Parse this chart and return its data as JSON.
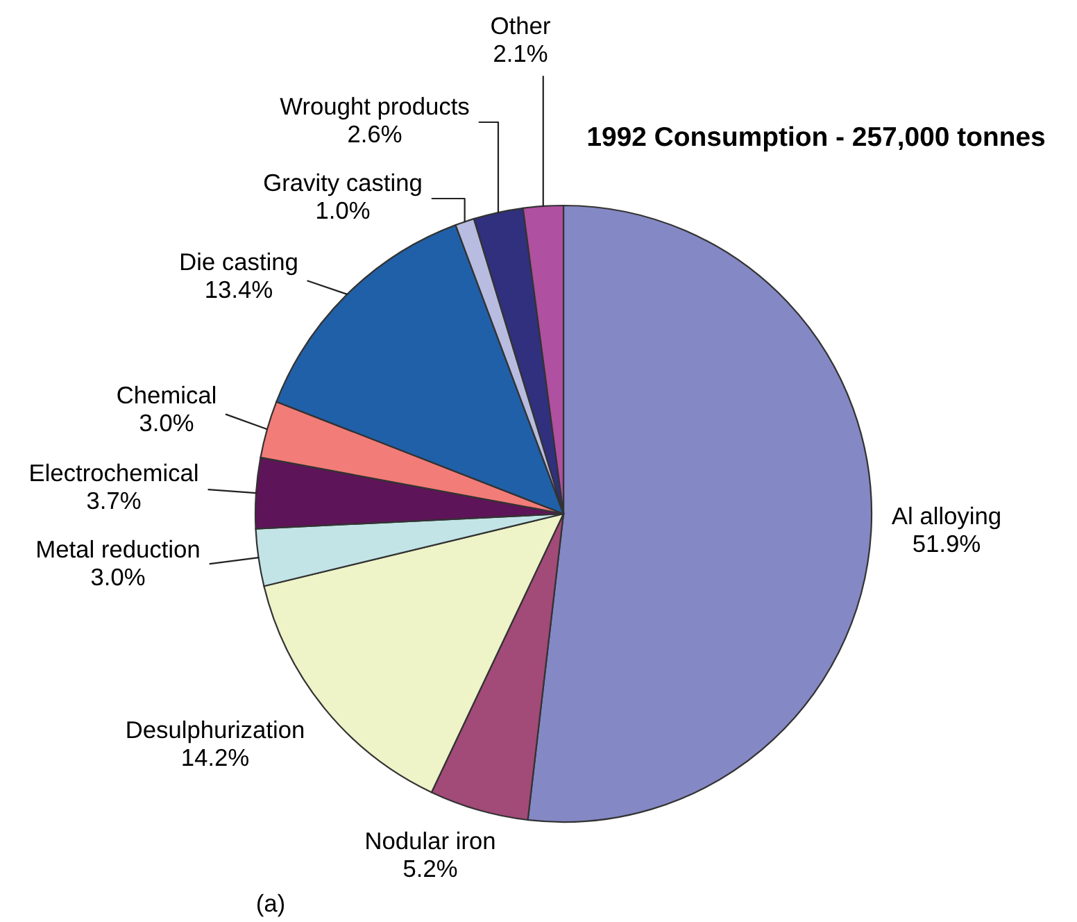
{
  "chart_data": {
    "type": "pie",
    "title": "1992 Consumption - 257,000 tonnes",
    "categories": [
      "Al alloying",
      "Nodular iron",
      "Desulphurization",
      "Metal reduction",
      "Electrochemical",
      "Chemical",
      "Die casting",
      "Gravity casting",
      "Wrought products",
      "Other"
    ],
    "values": [
      51.9,
      5.2,
      14.2,
      3.0,
      3.7,
      3.0,
      13.4,
      1.0,
      2.6,
      2.1
    ],
    "value_labels": [
      "51.9%",
      "5.2%",
      "14.2%",
      "3.0%",
      "3.7%",
      "3.0%",
      "13.4%",
      "1.0%",
      "2.6%",
      "2.1%"
    ],
    "colors": [
      "#8488c4",
      "#a24a78",
      "#eef3c8",
      "#c2e4e6",
      "#5e1458",
      "#f27c78",
      "#2060a8",
      "#b8bce0",
      "#30307e",
      "#b050a0"
    ],
    "legend": false,
    "annotations": [
      "(a)"
    ]
  }
}
